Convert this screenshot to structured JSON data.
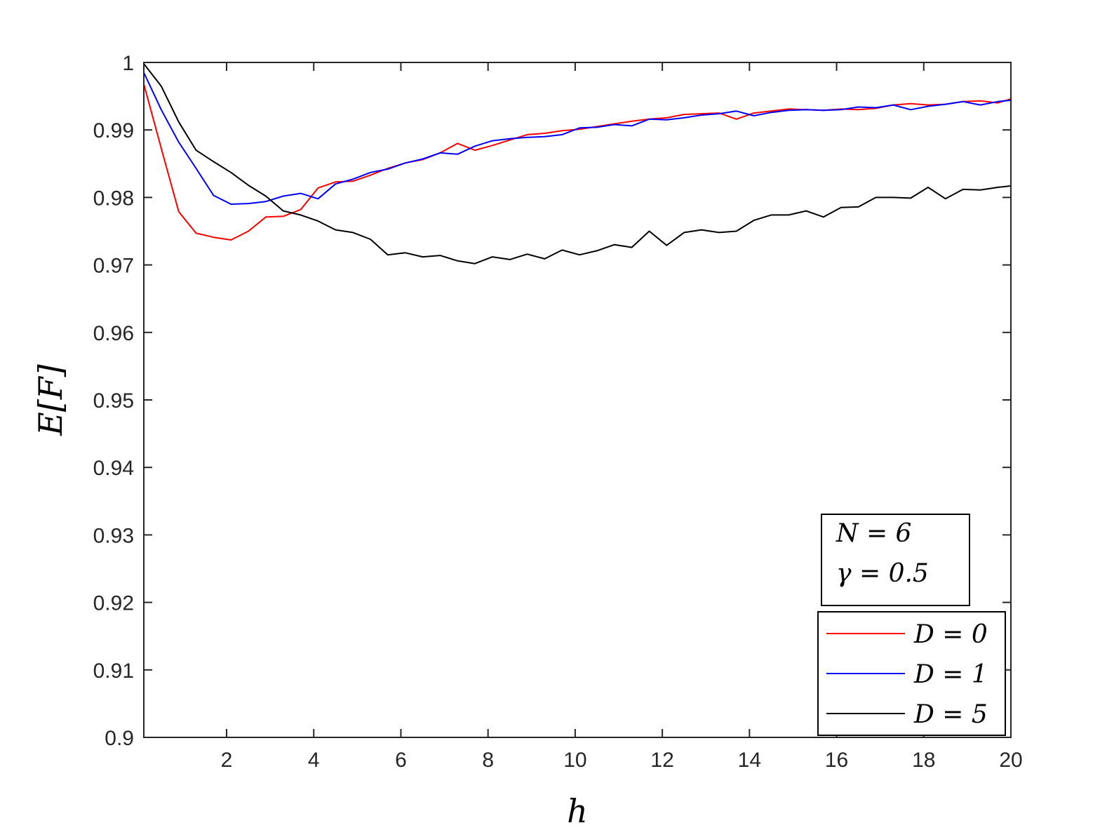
{
  "chart_data": {
    "type": "line",
    "title": "",
    "xlabel": "h",
    "ylabel": "E[F]",
    "xlim": [
      0.1,
      20
    ],
    "ylim": [
      0.9,
      1.0
    ],
    "xticks": [
      2,
      4,
      6,
      8,
      10,
      12,
      14,
      16,
      18,
      20
    ],
    "xtick_labels": [
      "2",
      "4",
      "6",
      "8",
      "10",
      "12",
      "14",
      "16",
      "18",
      "20"
    ],
    "yticks": [
      0.9,
      0.91,
      0.92,
      0.93,
      0.94,
      0.95,
      0.96,
      0.97,
      0.98,
      0.99,
      1.0
    ],
    "ytick_labels": [
      "0.9",
      "0.91",
      "0.92",
      "0.93",
      "0.94",
      "0.95",
      "0.96",
      "0.97",
      "0.98",
      "0.99",
      "1"
    ],
    "grid": false,
    "legend_position": "bottom-right",
    "annotation": [
      "N = 6",
      "γ = 0.5"
    ],
    "series": [
      {
        "name": "D = 0",
        "color": "#ff0000",
        "x": [
          0.1,
          0.5,
          0.9,
          1.3,
          1.7,
          2.1,
          2.5,
          2.9,
          3.3,
          3.7,
          4.1,
          4.5,
          4.9,
          5.3,
          5.7,
          6.1,
          6.5,
          6.9,
          7.3,
          7.7,
          8.1,
          8.5,
          8.9,
          9.3,
          9.7,
          10.1,
          10.5,
          10.9,
          11.3,
          11.7,
          12.1,
          12.5,
          12.9,
          13.3,
          13.7,
          14.1,
          14.5,
          14.9,
          15.3,
          15.7,
          16.1,
          16.5,
          16.9,
          17.3,
          17.7,
          18.1,
          18.5,
          18.9,
          19.3,
          19.7,
          20.0
        ],
        "y": [
          0.9968,
          0.9873,
          0.9779,
          0.9747,
          0.9741,
          0.9737,
          0.975,
          0.9771,
          0.9772,
          0.9782,
          0.9814,
          0.9823,
          0.9824,
          0.9833,
          0.9843,
          0.9851,
          0.9856,
          0.9866,
          0.988,
          0.987,
          0.9877,
          0.9885,
          0.9893,
          0.9895,
          0.9899,
          0.9901,
          0.9905,
          0.9909,
          0.9913,
          0.9916,
          0.9918,
          0.9923,
          0.9924,
          0.9925,
          0.9916,
          0.9925,
          0.9928,
          0.9931,
          0.993,
          0.9929,
          0.9931,
          0.993,
          0.9932,
          0.9937,
          0.9939,
          0.9937,
          0.9938,
          0.9942,
          0.9943,
          0.994,
          0.9946
        ]
      },
      {
        "name": "D = 1",
        "color": "#0000ff",
        "x": [
          0.1,
          0.5,
          0.9,
          1.3,
          1.7,
          2.1,
          2.5,
          2.9,
          3.3,
          3.7,
          4.1,
          4.5,
          4.9,
          5.3,
          5.7,
          6.1,
          6.5,
          6.9,
          7.3,
          7.7,
          8.1,
          8.5,
          8.9,
          9.3,
          9.7,
          10.1,
          10.5,
          10.9,
          11.3,
          11.7,
          12.1,
          12.5,
          12.9,
          13.3,
          13.7,
          14.1,
          14.5,
          14.9,
          15.3,
          15.7,
          16.1,
          16.5,
          16.9,
          17.3,
          17.7,
          18.1,
          18.5,
          18.9,
          19.3,
          19.7,
          20.0
        ],
        "y": [
          0.9985,
          0.993,
          0.9882,
          0.9843,
          0.9803,
          0.979,
          0.9791,
          0.9794,
          0.9802,
          0.9806,
          0.9798,
          0.982,
          0.9827,
          0.9837,
          0.9842,
          0.9851,
          0.9857,
          0.9866,
          0.9864,
          0.9876,
          0.9884,
          0.9887,
          0.9889,
          0.989,
          0.9893,
          0.9903,
          0.9904,
          0.9908,
          0.9906,
          0.9916,
          0.9915,
          0.9918,
          0.9922,
          0.9924,
          0.9928,
          0.9921,
          0.9926,
          0.9929,
          0.993,
          0.9929,
          0.993,
          0.9934,
          0.9933,
          0.9937,
          0.993,
          0.9935,
          0.9938,
          0.9942,
          0.9937,
          0.9942,
          0.9944
        ]
      },
      {
        "name": "D = 5",
        "color": "#000000",
        "x": [
          0.1,
          0.5,
          0.9,
          1.3,
          1.7,
          2.1,
          2.5,
          2.9,
          3.3,
          3.7,
          4.1,
          4.5,
          4.9,
          5.3,
          5.7,
          6.1,
          6.5,
          6.9,
          7.3,
          7.7,
          8.1,
          8.5,
          8.9,
          9.3,
          9.7,
          10.1,
          10.5,
          10.9,
          11.3,
          11.7,
          12.1,
          12.5,
          12.9,
          13.3,
          13.7,
          14.1,
          14.5,
          14.9,
          15.3,
          15.7,
          16.1,
          16.5,
          16.9,
          17.3,
          17.7,
          18.1,
          18.5,
          18.9,
          19.3,
          19.7,
          20.0
        ],
        "y": [
          0.9998,
          0.9965,
          0.9912,
          0.987,
          0.9853,
          0.9837,
          0.9818,
          0.9802,
          0.978,
          0.9774,
          0.9765,
          0.9752,
          0.9748,
          0.9738,
          0.9715,
          0.9718,
          0.9712,
          0.9714,
          0.9706,
          0.9702,
          0.9712,
          0.9708,
          0.9716,
          0.9709,
          0.9722,
          0.9715,
          0.9721,
          0.973,
          0.9726,
          0.975,
          0.9729,
          0.9748,
          0.9752,
          0.9748,
          0.975,
          0.9766,
          0.9774,
          0.9774,
          0.978,
          0.9771,
          0.9785,
          0.9786,
          0.98,
          0.98,
          0.9799,
          0.9815,
          0.9798,
          0.9812,
          0.9811,
          0.9815,
          0.9817
        ]
      }
    ]
  }
}
